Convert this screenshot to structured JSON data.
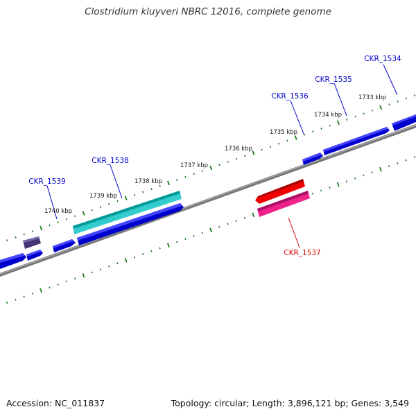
{
  "title": "Clostridium kluyveri NBRC 12016, complete genome",
  "accession_text": "Accession: NC_011837",
  "summary_text": "Topology: circular; Length: 3,896,121 bp; Genes: 3,549",
  "colors": {
    "backbone": "#8a8a8a",
    "tick": "#1b7a1b",
    "forward_cds": "#0000ee",
    "label_forward": "#0000cc",
    "label_reverse": "#dd0000",
    "highlight_cyan": "#33cccc",
    "highlight_red": "#ee0000",
    "highlight_magenta": "#ee2288",
    "small_gene": "#443377"
  },
  "scale_labels": [
    "1733 kbp",
    "1734 kbp",
    "1735 kbp",
    "1736 kbp",
    "1737 kbp",
    "1738 kbp",
    "1739 kbp",
    "1740 kbp"
  ],
  "genes": [
    {
      "id": "CKR_1534",
      "strand": "forward",
      "color": "#0000ee"
    },
    {
      "id": "CKR_1535",
      "strand": "forward",
      "color": "#0000ee"
    },
    {
      "id": "CKR_1536",
      "strand": "forward",
      "color": "#0000ee"
    },
    {
      "id": "CKR_1537",
      "strand": "reverse",
      "color": "#ee2288"
    },
    {
      "id": "CKR_1538",
      "strand": "forward",
      "color": "#33cccc"
    },
    {
      "id": "CKR_1539",
      "strand": "forward",
      "color": "#0000ee"
    }
  ]
}
